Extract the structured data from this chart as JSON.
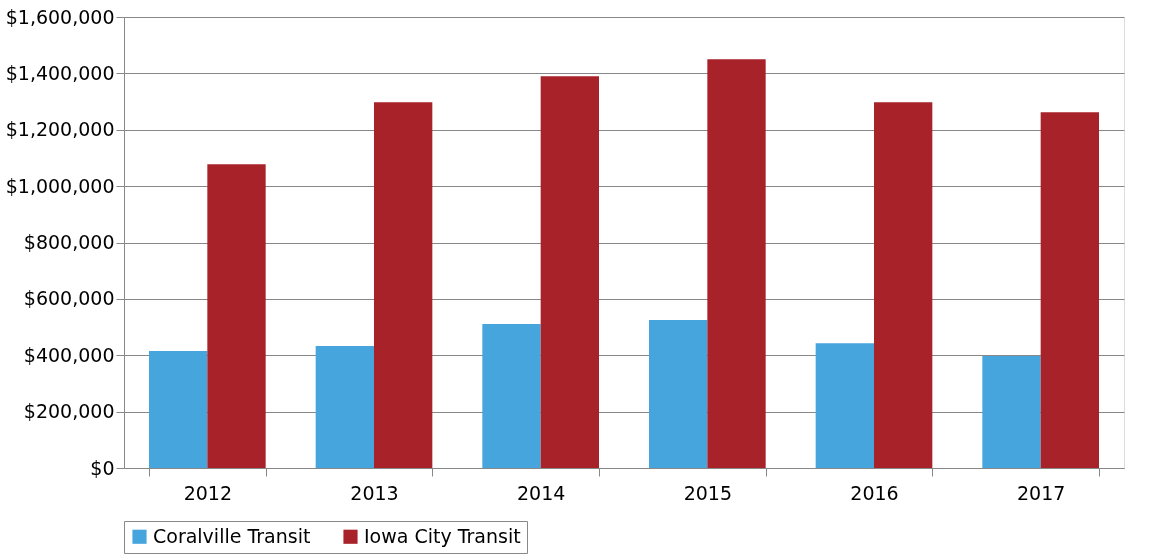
{
  "chart_data": {
    "type": "bar",
    "categories": [
      "2012",
      "2013",
      "2014",
      "2015",
      "2016",
      "2017"
    ],
    "series": [
      {
        "name": "Coralville Transit",
        "color": "#45a5dc",
        "values": [
          415000,
          433000,
          511000,
          525000,
          443000,
          397000
        ]
      },
      {
        "name": "Iowa City Transit",
        "color": "#a8222a",
        "values": [
          1078000,
          1298000,
          1390000,
          1450000,
          1298000,
          1262000
        ]
      }
    ],
    "ylim": [
      0,
      1600000
    ],
    "yticks": [
      {
        "value": 0,
        "label": "$0"
      },
      {
        "value": 200000,
        "label": "$200,000"
      },
      {
        "value": 400000,
        "label": "$400,000"
      },
      {
        "value": 600000,
        "label": "$600,000"
      },
      {
        "value": 800000,
        "label": "$800,000"
      },
      {
        "value": 1000000,
        "label": "$1,000,000"
      },
      {
        "value": 1200000,
        "label": "$1,200,000"
      },
      {
        "value": 1400000,
        "label": "$1,400,000"
      },
      {
        "value": 1600000,
        "label": "$1,600,000"
      }
    ],
    "grid": "y",
    "legend": "bottom"
  }
}
